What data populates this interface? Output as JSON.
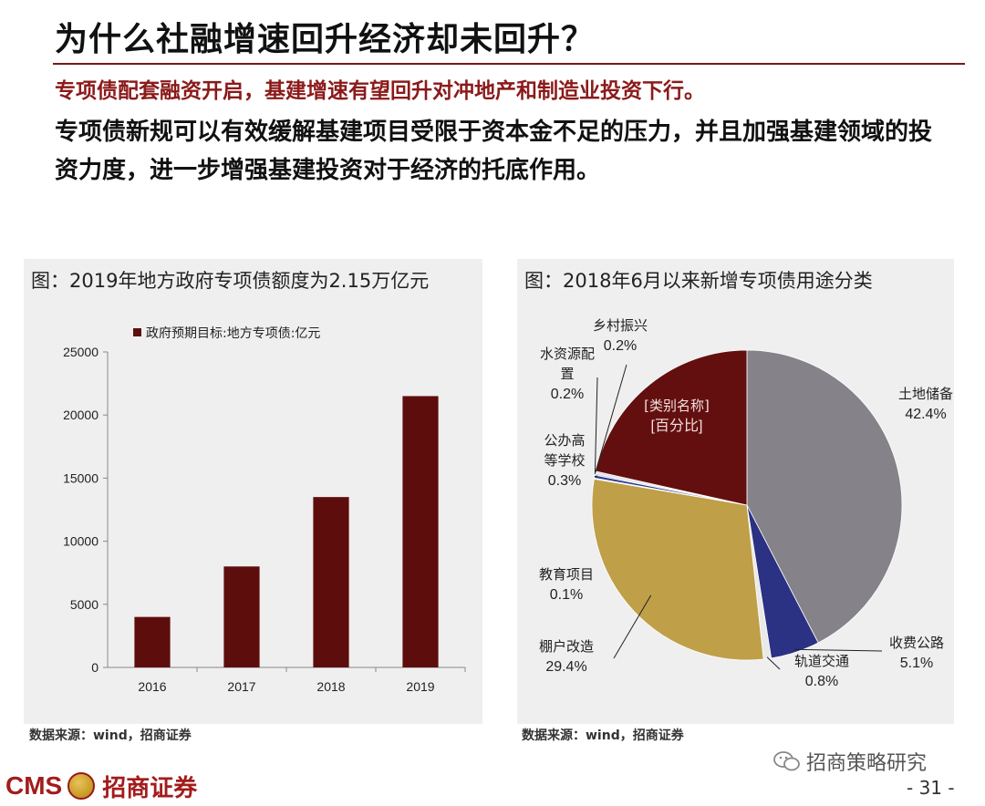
{
  "header": {
    "title": "为什么社融增速回升经济却未回升？",
    "subtitle": "专项债配套融资开启，基建增速有望回升对冲地产和制造业投资下行。",
    "body": "专项债新规可以有效缓解基建项目受限于资本金不足的压力，并且加强基建领域的投资力度，进一步增强基建投资对于经济的托底作用。"
  },
  "left_panel": {
    "title": "图：2019年地方政府专项债额度为2.15万亿元",
    "source": "数据来源：wind，招商证券"
  },
  "right_panel": {
    "title": "图：2018年6月以来新增专项债用途分类",
    "source": "数据来源：wind，招商证券"
  },
  "footer": {
    "logo_text": "CMS",
    "logo_cn": "招商证券",
    "wechat_name": "招商策略研究",
    "page": "- 31 -"
  },
  "colors": {
    "accent": "#7a1616",
    "bar": "#5e0d0d",
    "pie": [
      "#858389",
      "#2b3183",
      "#e9e9e9",
      "#bf9f48",
      "#dcdcdc",
      "#2d398c",
      "#cfd3e6",
      "#d8d8d8",
      "#640f0f"
    ]
  },
  "chart_data": [
    {
      "type": "bar",
      "title": "图：2019年地方政府专项债额度为2.15万亿元",
      "categories": [
        "2016",
        "2017",
        "2018",
        "2019"
      ],
      "series": [
        {
          "name": "政府预期目标:地方专项债:亿元",
          "values": [
            4000,
            8000,
            13500,
            21500
          ]
        }
      ],
      "ylim": [
        0,
        25000
      ],
      "yticks": [
        0,
        5000,
        10000,
        15000,
        20000,
        25000
      ],
      "grid": false,
      "legend": "top-left"
    },
    {
      "type": "pie",
      "title": "图：2018年6月以来新增专项债用途分类",
      "slices": [
        {
          "label": "土地储备",
          "value": 42.4,
          "pct": "42.4%"
        },
        {
          "label": "收费公路",
          "value": 5.1,
          "pct": "5.1%"
        },
        {
          "label": "轨道交通",
          "value": 0.8,
          "pct": "0.8%"
        },
        {
          "label": "棚户改造",
          "value": 29.4,
          "pct": "29.4%"
        },
        {
          "label": "教育项目",
          "value": 0.1,
          "pct": "0.1%"
        },
        {
          "label": "公办高等学校",
          "value": 0.3,
          "pct": "0.3%"
        },
        {
          "label": "水资源配置",
          "value": 0.2,
          "pct": "0.2%"
        },
        {
          "label": "乡村振兴",
          "value": 0.2,
          "pct": "0.2%"
        },
        {
          "label": "[类别名称]",
          "value": 21.5,
          "pct": "[百分比]"
        }
      ]
    }
  ]
}
